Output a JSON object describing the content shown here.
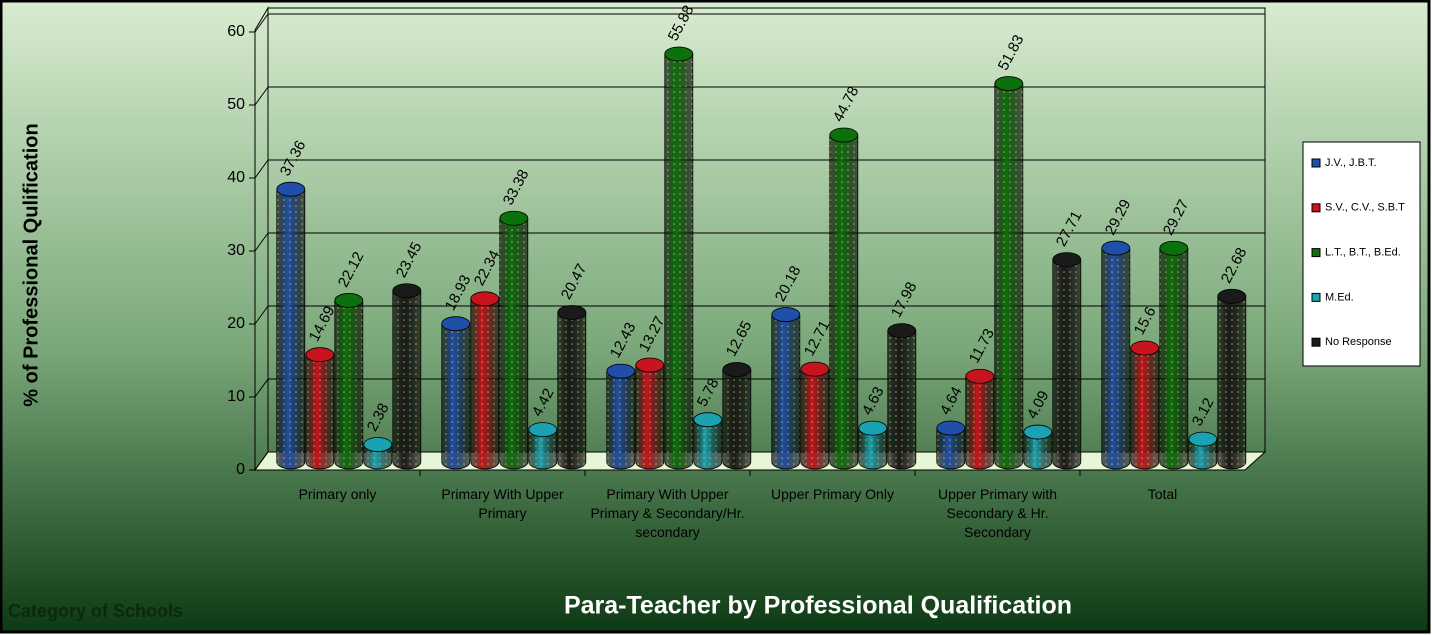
{
  "chart_data": {
    "type": "bar",
    "title": "Para-Teacher by Professional Qualification",
    "x_label": "Category of Schools",
    "y_label": "% of Professional Qulification",
    "categories": [
      "Primary only",
      "Primary With Upper Primary",
      "Primary With Upper Primary & Secondary/Hr. secondary",
      "Upper Primary Only",
      "Upper Primary with Secondary & Hr. Secondary",
      "Total"
    ],
    "series": [
      {
        "name": "J.V., J.B.T.",
        "color": "#1f4fa8",
        "values": [
          37.36,
          18.93,
          12.43,
          20.18,
          4.64,
          29.29
        ]
      },
      {
        "name": "S.V., C.V., S.B.T",
        "color": "#c8141c",
        "values": [
          14.69,
          22.34,
          13.27,
          12.71,
          11.73,
          15.6
        ]
      },
      {
        "name": "L.T., B.T., B.Ed.",
        "color": "#0c700c",
        "values": [
          22.12,
          33.38,
          55.88,
          44.78,
          51.83,
          29.27
        ]
      },
      {
        "name": "M.Ed.",
        "color": "#1aa2b2",
        "values": [
          2.38,
          4.42,
          5.78,
          4.63,
          4.09,
          3.12
        ]
      },
      {
        "name": "No Response",
        "color": "#1a1a1a",
        "values": [
          23.45,
          20.47,
          12.65,
          17.98,
          27.71,
          22.68
        ]
      }
    ],
    "ylim": [
      0,
      60
    ],
    "yticks": [
      0,
      10,
      20,
      30,
      40,
      50,
      60
    ],
    "grid": true,
    "legend": "right"
  }
}
